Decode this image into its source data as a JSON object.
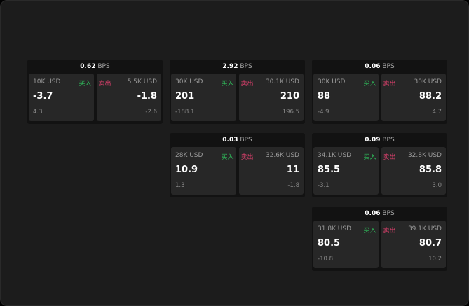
{
  "unit": "BPS",
  "buy_label": "买入",
  "sell_label": "卖出",
  "colors": {
    "buy": "#2fbf5c",
    "sell": "#e0406e"
  },
  "cards": [
    {
      "spread": "0.62",
      "bid": {
        "size": "10K USD",
        "price": "-3.7",
        "change": "4.3"
      },
      "ask": {
        "size": "5.5K USD",
        "price": "-1.8",
        "change": "-2.6"
      }
    },
    {
      "spread": "2.92",
      "bid": {
        "size": "30K USD",
        "price": "201",
        "change": "-188.1"
      },
      "ask": {
        "size": "30.1K USD",
        "price": "210",
        "change": "196.5"
      }
    },
    {
      "spread": "0.06",
      "bid": {
        "size": "30K USD",
        "price": "88",
        "change": "-4.9"
      },
      "ask": {
        "size": "30K USD",
        "price": "88.2",
        "change": "4.7"
      }
    },
    {
      "spread": "0.03",
      "bid": {
        "size": "28K USD",
        "price": "10.9",
        "change": "1.3"
      },
      "ask": {
        "size": "32.6K USD",
        "price": "11",
        "change": "-1.8"
      }
    },
    {
      "spread": "0.09",
      "bid": {
        "size": "34.1K USD",
        "price": "85.5",
        "change": "-3.1"
      },
      "ask": {
        "size": "32.8K USD",
        "price": "85.8",
        "change": "3.0"
      }
    },
    {
      "spread": "0.06",
      "bid": {
        "size": "31.8K USD",
        "price": "80.5",
        "change": "-10.8"
      },
      "ask": {
        "size": "39.1K USD",
        "price": "80.7",
        "change": "10.2"
      }
    }
  ]
}
